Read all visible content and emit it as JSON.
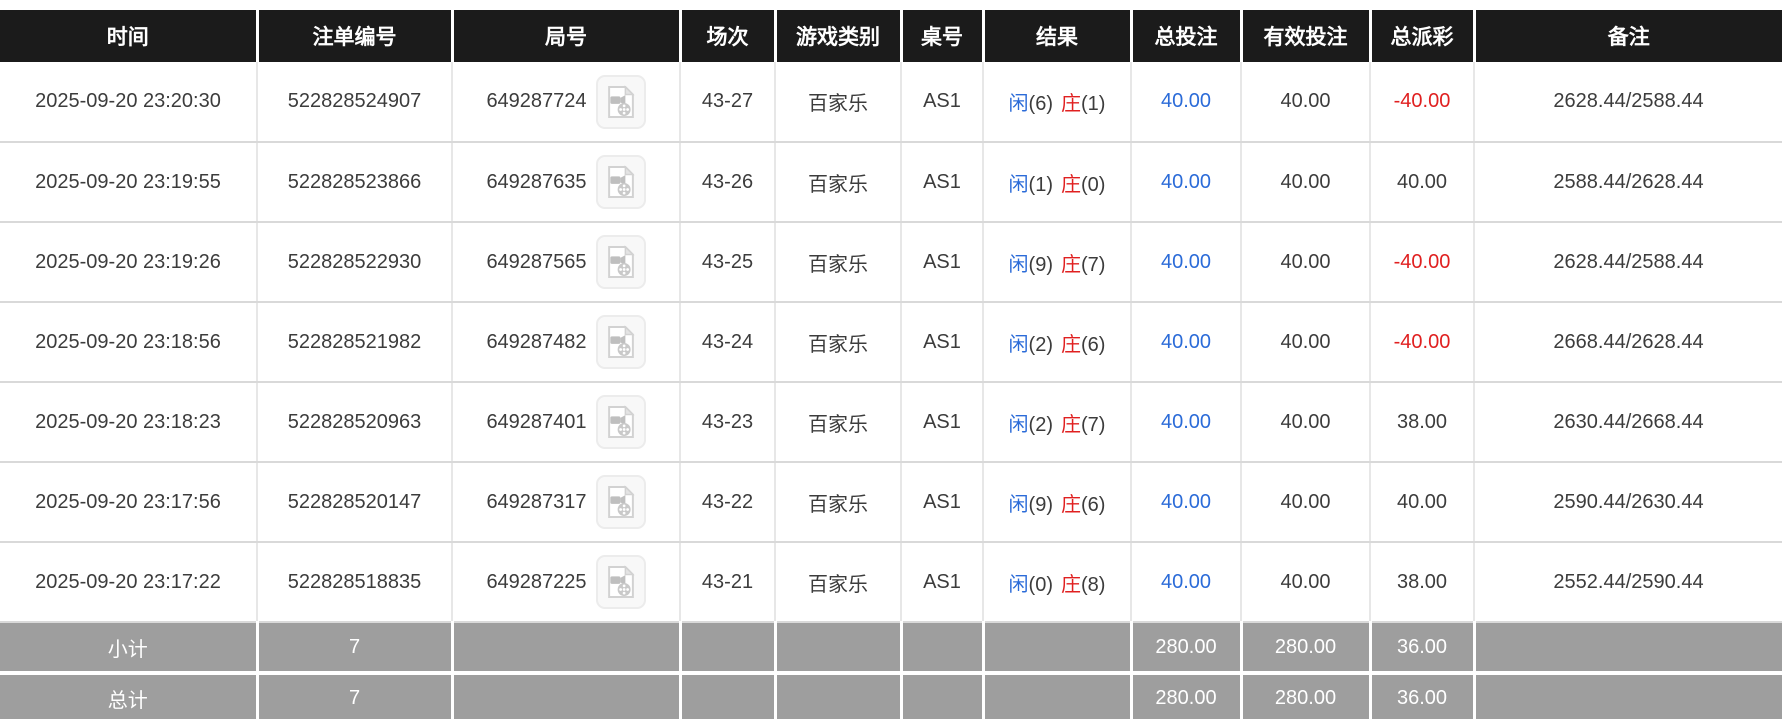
{
  "colors": {
    "header_bg": "#1b1b1b",
    "accent_blue": "#2b6bd8",
    "accent_red": "#e02020",
    "summary_bg": "#9e9e9e"
  },
  "icons": {
    "round_video": "video-file-icon"
  },
  "table": {
    "columns": [
      "时间",
      "注单编号",
      "局号",
      "场次",
      "游戏类别",
      "桌号",
      "结果",
      "总投注",
      "有效投注",
      "总派彩",
      "备注"
    ],
    "rows": [
      {
        "time": "2025-09-20 23:20:30",
        "bet_id": "522828524907",
        "round_id": "649287724",
        "session": "43-27",
        "game": "百家乐",
        "table_no": "AS1",
        "result": {
          "player_label": "闲",
          "player_score": "(6)",
          "banker_label": "庄",
          "banker_score": "(1)"
        },
        "total_bet": "40.00",
        "valid_bet": "40.00",
        "payout": "-40.00",
        "remark": "2628.44/2588.44"
      },
      {
        "time": "2025-09-20 23:19:55",
        "bet_id": "522828523866",
        "round_id": "649287635",
        "session": "43-26",
        "game": "百家乐",
        "table_no": "AS1",
        "result": {
          "player_label": "闲",
          "player_score": "(1)",
          "banker_label": "庄",
          "banker_score": "(0)"
        },
        "total_bet": "40.00",
        "valid_bet": "40.00",
        "payout": "40.00",
        "remark": "2588.44/2628.44"
      },
      {
        "time": "2025-09-20 23:19:26",
        "bet_id": "522828522930",
        "round_id": "649287565",
        "session": "43-25",
        "game": "百家乐",
        "table_no": "AS1",
        "result": {
          "player_label": "闲",
          "player_score": "(9)",
          "banker_label": "庄",
          "banker_score": "(7)"
        },
        "total_bet": "40.00",
        "valid_bet": "40.00",
        "payout": "-40.00",
        "remark": "2628.44/2588.44"
      },
      {
        "time": "2025-09-20 23:18:56",
        "bet_id": "522828521982",
        "round_id": "649287482",
        "session": "43-24",
        "game": "百家乐",
        "table_no": "AS1",
        "result": {
          "player_label": "闲",
          "player_score": "(2)",
          "banker_label": "庄",
          "banker_score": "(6)"
        },
        "total_bet": "40.00",
        "valid_bet": "40.00",
        "payout": "-40.00",
        "remark": "2668.44/2628.44"
      },
      {
        "time": "2025-09-20 23:18:23",
        "bet_id": "522828520963",
        "round_id": "649287401",
        "session": "43-23",
        "game": "百家乐",
        "table_no": "AS1",
        "result": {
          "player_label": "闲",
          "player_score": "(2)",
          "banker_label": "庄",
          "banker_score": "(7)"
        },
        "total_bet": "40.00",
        "valid_bet": "40.00",
        "payout": "38.00",
        "remark": "2630.44/2668.44"
      },
      {
        "time": "2025-09-20 23:17:56",
        "bet_id": "522828520147",
        "round_id": "649287317",
        "session": "43-22",
        "game": "百家乐",
        "table_no": "AS1",
        "result": {
          "player_label": "闲",
          "player_score": "(9)",
          "banker_label": "庄",
          "banker_score": "(6)"
        },
        "total_bet": "40.00",
        "valid_bet": "40.00",
        "payout": "40.00",
        "remark": "2590.44/2630.44"
      },
      {
        "time": "2025-09-20 23:17:22",
        "bet_id": "522828518835",
        "round_id": "649287225",
        "session": "43-21",
        "game": "百家乐",
        "table_no": "AS1",
        "result": {
          "player_label": "闲",
          "player_score": "(0)",
          "banker_label": "庄",
          "banker_score": "(8)"
        },
        "total_bet": "40.00",
        "valid_bet": "40.00",
        "payout": "38.00",
        "remark": "2552.44/2590.44"
      }
    ],
    "summary_rows": [
      {
        "label": "小计",
        "count": "7",
        "total_bet": "280.00",
        "valid_bet": "280.00",
        "payout": "36.00"
      },
      {
        "label": "总计",
        "count": "7",
        "total_bet": "280.00",
        "valid_bet": "280.00",
        "payout": "36.00"
      }
    ]
  }
}
